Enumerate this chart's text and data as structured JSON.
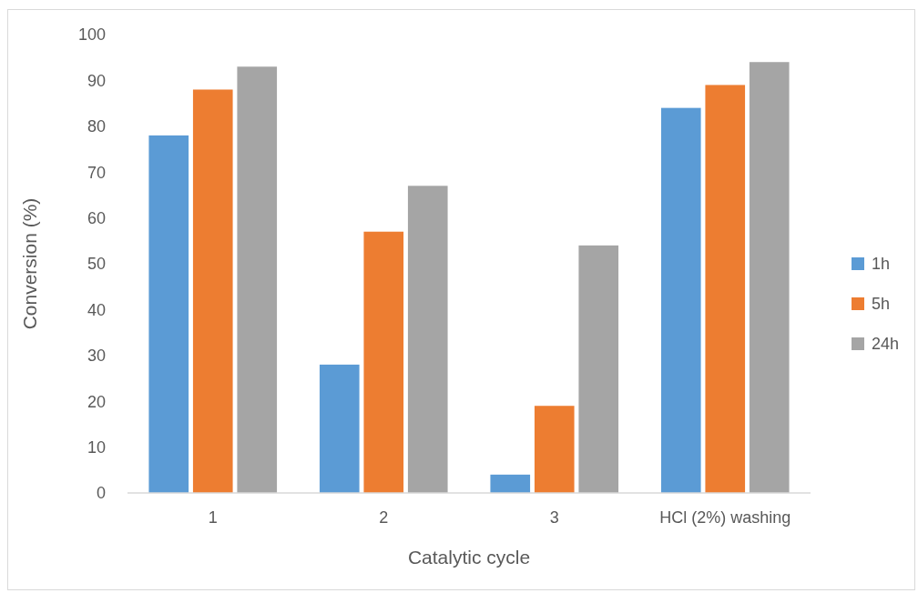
{
  "chart_data": {
    "type": "bar",
    "xlabel": "Catalytic cycle",
    "ylabel": "Conversion (%)",
    "categories": [
      "1",
      "2",
      "3",
      "HCl (2%) washing"
    ],
    "series": [
      {
        "name": "1h",
        "color": "#5b9bd5",
        "values": [
          78,
          28,
          4,
          84
        ]
      },
      {
        "name": "5h",
        "color": "#ed7d31",
        "values": [
          88,
          57,
          19,
          89
        ]
      },
      {
        "name": "24h",
        "color": "#a5a5a5",
        "values": [
          93,
          67,
          54,
          94
        ]
      }
    ],
    "ylim": [
      0,
      100
    ],
    "yticks": [
      0,
      10,
      20,
      30,
      40,
      50,
      60,
      70,
      80,
      90,
      100
    ],
    "grid": false,
    "legend": "right"
  }
}
